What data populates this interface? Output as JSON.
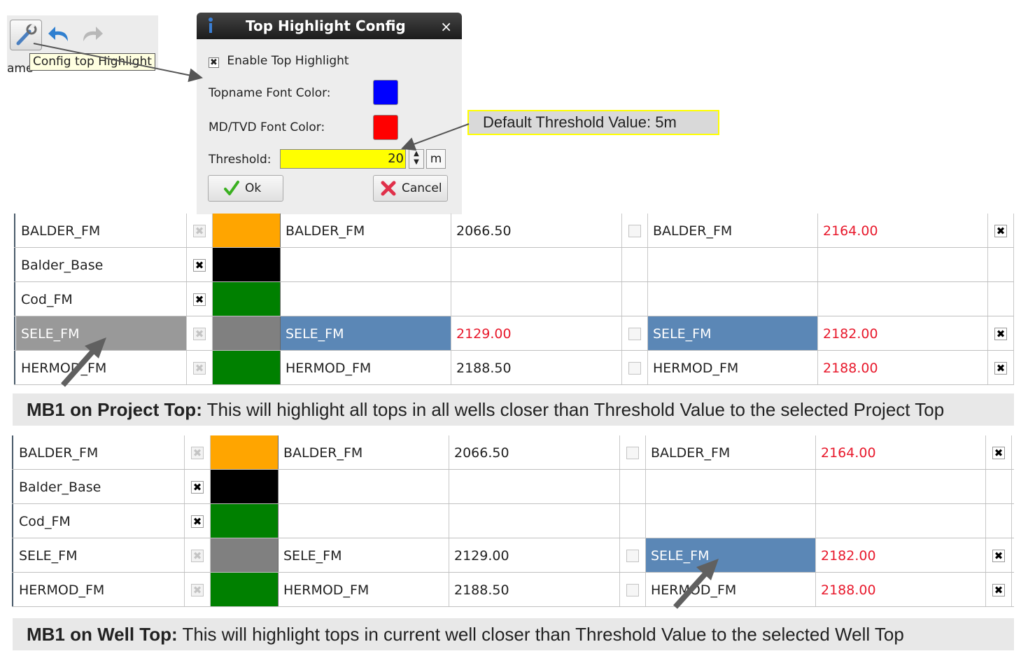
{
  "toolbar": {
    "buttons": [
      {
        "icon": "wrench-icon"
      },
      {
        "icon": "undo-icon"
      },
      {
        "icon": "redo-icon"
      }
    ],
    "tooltip": "Config top Highlight",
    "partial_label": "ame"
  },
  "dialog": {
    "title": "Top Highlight Config",
    "close_glyph": "×",
    "enable_label": "Enable Top Highlight",
    "enable_checked": "✖",
    "topname_label": "Topname Font Color:",
    "topname_color": "#0000ff",
    "md_label": "MD/TVD Font Color:",
    "md_color": "#ff0000",
    "threshold_label": "Threshold:",
    "threshold_value": "20",
    "unit": "m",
    "ok_label": "Ok",
    "cancel_label": "Cancel"
  },
  "callout": "Default Threshold Value: 5m",
  "colors": {
    "highlight_row": "#5b87b6",
    "selected_gray": "#999999",
    "red_text": "#e8192c"
  },
  "table1": {
    "rows": [
      {
        "name": "BALDER_FM",
        "check": "disabled",
        "color": "#ffa500",
        "top2": "BALDER_FM",
        "md2": "2066.50",
        "md2_red": false,
        "chk3": "empty",
        "top3": "BALDER_FM",
        "md3": "2164.00",
        "md3_red": true,
        "chk4": "checked"
      },
      {
        "name": "Balder_Base",
        "check": "checked",
        "color": "#000000",
        "top2": "",
        "md2": "",
        "md2_red": false,
        "chk3": "",
        "top3": "",
        "md3": "",
        "md3_red": false,
        "chk4": ""
      },
      {
        "name": "Cod_FM",
        "check": "checked",
        "color": "#008000",
        "top2": "",
        "md2": "",
        "md2_red": false,
        "chk3": "",
        "top3": "",
        "md3": "",
        "md3_red": false,
        "chk4": ""
      },
      {
        "name": "SELE_FM",
        "check": "disabled",
        "color": "#808080",
        "top2": "SELE_FM",
        "md2": "2129.00",
        "md2_red": true,
        "chk3": "empty",
        "top3": "SELE_FM",
        "md3": "2182.00",
        "md3_red": true,
        "chk4": "checked"
      },
      {
        "name": "HERMOD_FM",
        "check": "disabled",
        "color": "#008000",
        "top2": "HERMOD_FM",
        "md2": "2188.50",
        "md2_red": false,
        "chk3": "empty",
        "top3": "HERMOD_FM",
        "md3": "2188.00",
        "md3_red": true,
        "chk4": "checked"
      }
    ]
  },
  "caption1": {
    "bold": "MB1 on Project Top:",
    "text": " This will highlight all tops in all wells closer than Threshold Value to the selected Project Top"
  },
  "table2": {
    "rows": [
      {
        "name": "BALDER_FM",
        "check": "disabled",
        "color": "#ffa500",
        "top2": "BALDER_FM",
        "md2": "2066.50",
        "md2_red": false,
        "chk3": "empty",
        "top3": "BALDER_FM",
        "md3": "2164.00",
        "md3_red": true,
        "chk4": "checked"
      },
      {
        "name": "Balder_Base",
        "check": "checked",
        "color": "#000000",
        "top2": "",
        "md2": "",
        "md2_red": false,
        "chk3": "",
        "top3": "",
        "md3": "",
        "md3_red": false,
        "chk4": ""
      },
      {
        "name": "Cod_FM",
        "check": "checked",
        "color": "#008000",
        "top2": "",
        "md2": "",
        "md2_red": false,
        "chk3": "",
        "top3": "",
        "md3": "",
        "md3_red": false,
        "chk4": ""
      },
      {
        "name": "SELE_FM",
        "check": "disabled",
        "color": "#808080",
        "top2": "SELE_FM",
        "md2": "2129.00",
        "md2_red": false,
        "chk3": "empty",
        "top3": "SELE_FM",
        "md3": "2182.00",
        "md3_red": true,
        "chk4": "checked"
      },
      {
        "name": "HERMOD_FM",
        "check": "disabled",
        "color": "#008000",
        "top2": "HERMOD_FM",
        "md2": "2188.50",
        "md2_red": false,
        "chk3": "empty",
        "top3": "HERMOD_FM",
        "md3": "2188.00",
        "md3_red": true,
        "chk4": "checked"
      }
    ]
  },
  "caption2": {
    "bold": "MB1 on Well Top:",
    "text": " This will highlight tops in current well closer than Threshold Value to the selected Well Top"
  }
}
